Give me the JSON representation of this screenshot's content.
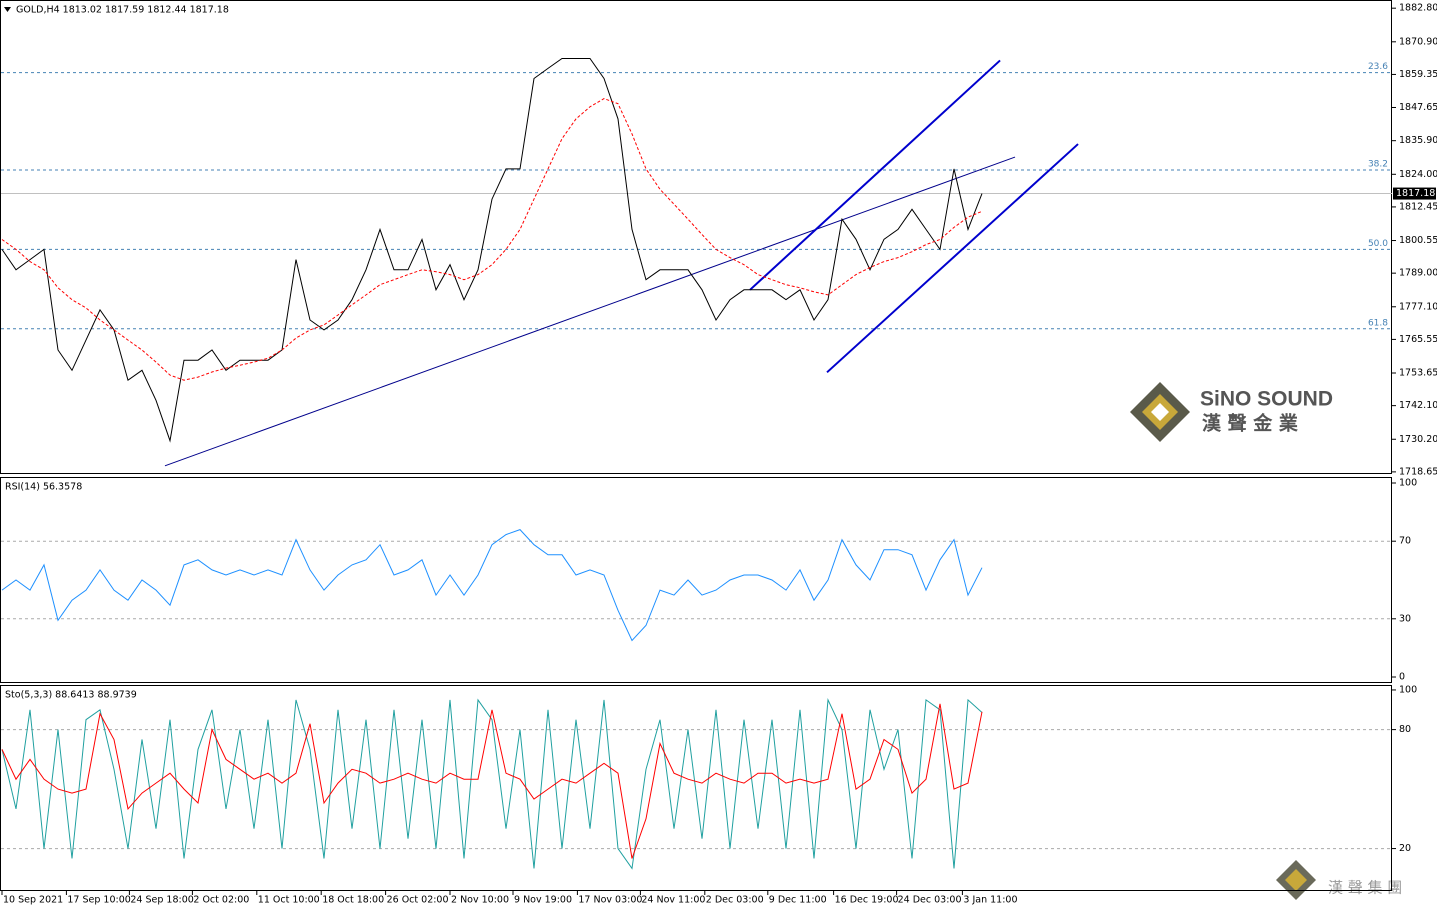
{
  "chart_data": [
    {
      "type": "line",
      "title": "GOLD,H4  1813.02 1817.59 1812.44 1817.18",
      "ylim": [
        1717.9,
        1885.7
      ],
      "yticks": [
        {
          "value": 1882.8,
          "label": "1882.80"
        },
        {
          "value": 1870.9,
          "label": "1870.90"
        },
        {
          "value": 1859.35,
          "label": "1859.35"
        },
        {
          "value": 1847.65,
          "label": "1847.65"
        },
        {
          "value": 1835.9,
          "label": "1835.90"
        },
        {
          "value": 1824.0,
          "label": "1824.00"
        },
        {
          "value": 1812.45,
          "label": "1812.45"
        },
        {
          "value": 1800.55,
          "label": "1800.55"
        },
        {
          "value": 1789.0,
          "label": "1789.00"
        },
        {
          "value": 1777.1,
          "label": "1777.10"
        },
        {
          "value": 1765.55,
          "label": "1765.55"
        },
        {
          "value": 1753.65,
          "label": "1753.65"
        },
        {
          "value": 1742.1,
          "label": "1742.10"
        },
        {
          "value": 1730.2,
          "label": "1730.20"
        },
        {
          "value": 1718.65,
          "label": "1718.65"
        }
      ],
      "series": [
        {
          "color": "#000000",
          "values": [
            1797.4,
            1790.2,
            1793.8,
            1797.4,
            1761.8,
            1754.6,
            1765.3,
            1776.0,
            1768.9,
            1751.1,
            1754.6,
            1744.0,
            1729.7,
            1758.2,
            1758.2,
            1761.8,
            1754.6,
            1758.2,
            1758.2,
            1758.2,
            1761.8,
            1793.8,
            1772.4,
            1768.9,
            1772.4,
            1779.6,
            1790.2,
            1804.5,
            1790.2,
            1790.2,
            1800.9,
            1783.1,
            1792.0,
            1779.6,
            1790.2,
            1815.2,
            1825.9,
            1825.9,
            1857.9,
            1861.5,
            1865.0,
            1865.0,
            1865.0,
            1857.9,
            1843.6,
            1804.5,
            1786.7,
            1790.2,
            1790.2,
            1790.2,
            1783.1,
            1772.4,
            1779.6,
            1783.1,
            1783.1,
            1783.1,
            1779.6,
            1783.1,
            1772.4,
            1779.6,
            1808.1,
            1801.0,
            1790.2,
            1801.0,
            1804.5,
            1811.6,
            1804.5,
            1797.4,
            1825.9,
            1804.5,
            1817.18
          ]
        },
        {
          "color": "#ff0000",
          "dashed": true,
          "values": [
            1800.9,
            1797.4,
            1793.1,
            1790.2,
            1783.8,
            1779.6,
            1776.7,
            1772.4,
            1768.9,
            1765.3,
            1761.8,
            1757.5,
            1752.9,
            1751.1,
            1752.2,
            1754.0,
            1755.4,
            1756.4,
            1757.5,
            1758.9,
            1761.8,
            1766.0,
            1768.9,
            1770.7,
            1774.2,
            1777.8,
            1781.3,
            1784.9,
            1786.7,
            1788.5,
            1790.2,
            1789.5,
            1788.5,
            1786.7,
            1788.5,
            1792.0,
            1797.4,
            1804.5,
            1815.2,
            1825.9,
            1836.6,
            1843.6,
            1847.9,
            1850.8,
            1849.0,
            1838.3,
            1825.9,
            1818.7,
            1813.4,
            1808.1,
            1802.7,
            1797.4,
            1794.5,
            1792.0,
            1788.5,
            1786.7,
            1784.9,
            1783.8,
            1782.4,
            1781.3,
            1784.9,
            1788.5,
            1791.0,
            1793.1,
            1794.5,
            1796.6,
            1799.1,
            1800.9,
            1805.2,
            1808.8,
            1810.9
          ]
        }
      ],
      "levels": [
        {
          "value": 1860.0,
          "label": "23.6"
        },
        {
          "value": 1825.5,
          "label": "38.2"
        },
        {
          "value": 1797.4,
          "label": "50.0"
        },
        {
          "value": 1769.3,
          "label": "61.8"
        }
      ],
      "last_price": 1817.18,
      "trendlines": [
        {
          "x": [
            11.64,
            72.36
          ],
          "y": [
            1720.8,
            1830.1
          ],
          "color": "#00008b",
          "width": 1
        },
        {
          "x": [
            53.43,
            71.29
          ],
          "y": [
            1783.1,
            1864.3
          ],
          "color": "#0000cd",
          "width": 2
        },
        {
          "x": [
            58.93,
            76.86
          ],
          "y": [
            1753.9,
            1834.7
          ],
          "color": "#0000cd",
          "width": 2
        }
      ]
    },
    {
      "type": "line",
      "title": "RSI(14) 56.3578",
      "ylim": [
        -3.1,
        103.1
      ],
      "yticks": [
        100,
        70,
        30,
        0
      ],
      "levels": [
        70,
        30
      ],
      "series": [
        {
          "color": "#1e90ff",
          "values": [
            44.8,
            50.0,
            44.8,
            57.8,
            29.2,
            39.6,
            44.8,
            55.2,
            44.8,
            39.6,
            50.0,
            44.8,
            37.0,
            57.8,
            60.4,
            55.2,
            52.6,
            55.2,
            52.6,
            55.2,
            52.6,
            70.8,
            55.2,
            44.8,
            52.6,
            57.8,
            60.4,
            68.2,
            52.6,
            55.2,
            60.4,
            42.2,
            52.6,
            42.2,
            52.6,
            68.2,
            73.4,
            76.0,
            68.2,
            63.0,
            63.0,
            52.6,
            55.2,
            52.6,
            34.4,
            18.8,
            26.6,
            44.8,
            42.2,
            50.0,
            42.2,
            44.8,
            50.0,
            52.6,
            52.6,
            50.0,
            44.8,
            55.2,
            39.6,
            50.0,
            70.8,
            57.8,
            50.0,
            65.6,
            65.6,
            63.0,
            44.8,
            60.4,
            70.8,
            42.2,
            56.36
          ]
        }
      ]
    },
    {
      "type": "line",
      "title": "Sto(5,3,3) 88.6413 88.9739",
      "ylim": [
        -1.4,
        102.5
      ],
      "yticks": [
        100,
        80,
        20
      ],
      "levels": [
        80,
        20
      ],
      "series": [
        {
          "color": "#20a0a0",
          "values": [
            70,
            40,
            90,
            20,
            80,
            15,
            85,
            90,
            60,
            20,
            75,
            30,
            85,
            15,
            70,
            90,
            40,
            80,
            30,
            85,
            20,
            95,
            70,
            15,
            90,
            30,
            85,
            20,
            90,
            25,
            85,
            20,
            95,
            15,
            95,
            85,
            30,
            80,
            10,
            90,
            20,
            85,
            30,
            95,
            20,
            10,
            60,
            85,
            30,
            80,
            25,
            90,
            20,
            85,
            30,
            85,
            20,
            90,
            15,
            95,
            80,
            20,
            90,
            60,
            80,
            15,
            95,
            90,
            10,
            95,
            88.64
          ]
        },
        {
          "color": "#ff0000",
          "values": [
            70,
            55,
            65,
            55,
            50,
            48,
            50,
            88,
            75,
            40,
            48,
            53,
            58,
            50,
            43,
            80,
            65,
            60,
            55,
            58,
            53,
            58,
            83,
            43,
            53,
            60,
            58,
            53,
            55,
            58,
            55,
            53,
            58,
            55,
            55,
            90,
            58,
            55,
            45,
            50,
            55,
            53,
            58,
            63,
            58,
            15,
            35,
            73,
            58,
            55,
            53,
            58,
            55,
            53,
            58,
            58,
            53,
            55,
            53,
            55,
            88,
            50,
            55,
            75,
            70,
            48,
            55,
            93,
            50,
            53,
            88.97
          ]
        }
      ],
      "xticks": [
        {
          "value": 0,
          "label": "10 Sep 2021"
        },
        {
          "value": 4.6,
          "label": "17 Sep 10:00"
        },
        {
          "value": 9.1,
          "label": "24 Sep 18:00"
        },
        {
          "value": 13.6,
          "label": "2 Oct 02:00"
        },
        {
          "value": 18.2,
          "label": "11 Oct 10:00"
        },
        {
          "value": 22.8,
          "label": "18 Oct 18:00"
        },
        {
          "value": 27.4,
          "label": "26 Oct 02:00"
        },
        {
          "value": 32.0,
          "label": "2 Nov 10:00"
        },
        {
          "value": 36.5,
          "label": "9 Nov 19:00"
        },
        {
          "value": 41.1,
          "label": "17 Nov 03:00"
        },
        {
          "value": 45.6,
          "label": "24 Nov 11:00"
        },
        {
          "value": 50.2,
          "label": "2 Dec 03:00"
        },
        {
          "value": 54.7,
          "label": "9 Dec 11:00"
        },
        {
          "value": 59.4,
          "label": "16 Dec 19:00"
        },
        {
          "value": 63.9,
          "label": "24 Dec 03:00"
        },
        {
          "value": 68.6,
          "label": "3 Jan 11:00"
        }
      ]
    }
  ],
  "watermark": {
    "brand": "SiNO SOUND",
    "subtitle": "漢 聲 金 業"
  },
  "footer_mark": "漢 聲 集 團"
}
